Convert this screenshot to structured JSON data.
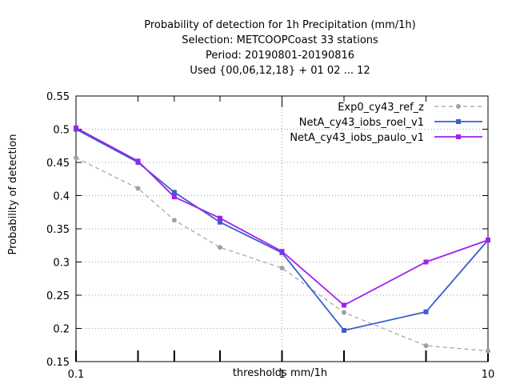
{
  "chart_data": {
    "type": "line",
    "title_lines": [
      "Probability of detection  for 1h Precipitation (mm/1h)",
      "Selection: METCOOPCoast     33 stations",
      "Period: 20190801-20190816",
      "Used {00,06,12,18} + 01 02 ... 12"
    ],
    "xlabel": "thresholds mm/1h",
    "ylabel": "Probability of detection",
    "xscale": "log",
    "xlim": [
      0.1,
      10
    ],
    "ylim": [
      0.15,
      0.55
    ],
    "x_ticks": [
      {
        "value": 0.1,
        "label": "0.1"
      },
      {
        "value": 1,
        "label": "1"
      },
      {
        "value": 10,
        "label": "10"
      }
    ],
    "x_minor_ticks": [
      0.2,
      0.3,
      0.5,
      2,
      5
    ],
    "y_ticks": [
      {
        "value": 0.15,
        "label": "0.15"
      },
      {
        "value": 0.2,
        "label": "0.2"
      },
      {
        "value": 0.25,
        "label": "0.25"
      },
      {
        "value": 0.3,
        "label": "0.3"
      },
      {
        "value": 0.35,
        "label": "0.35"
      },
      {
        "value": 0.4,
        "label": "0.4"
      },
      {
        "value": 0.45,
        "label": "0.45"
      },
      {
        "value": 0.5,
        "label": "0.5"
      },
      {
        "value": 0.55,
        "label": "0.55"
      }
    ],
    "x": [
      0.1,
      0.2,
      0.3,
      0.5,
      1,
      2,
      5,
      10
    ],
    "grid": true,
    "legend_position": "top-right",
    "series": [
      {
        "name": "Exp0_cy43_ref_z",
        "color": "#a0a0a0",
        "dashed": true,
        "marker": "circle",
        "values": [
          0.457,
          0.411,
          0.363,
          0.322,
          0.291,
          0.224,
          0.174,
          0.166
        ]
      },
      {
        "name": "NetA_cy43_iobs_roel_v1",
        "color": "#3a5fcd",
        "dashed": false,
        "marker": "square",
        "values": [
          0.5,
          0.45,
          0.405,
          0.36,
          0.314,
          0.197,
          0.225,
          0.333
        ]
      },
      {
        "name": "NetA_cy43_iobs_paulo_v1",
        "color": "#a020f0",
        "dashed": false,
        "marker": "square",
        "values": [
          0.502,
          0.452,
          0.398,
          0.366,
          0.316,
          0.235,
          0.3,
          0.333
        ]
      }
    ]
  }
}
